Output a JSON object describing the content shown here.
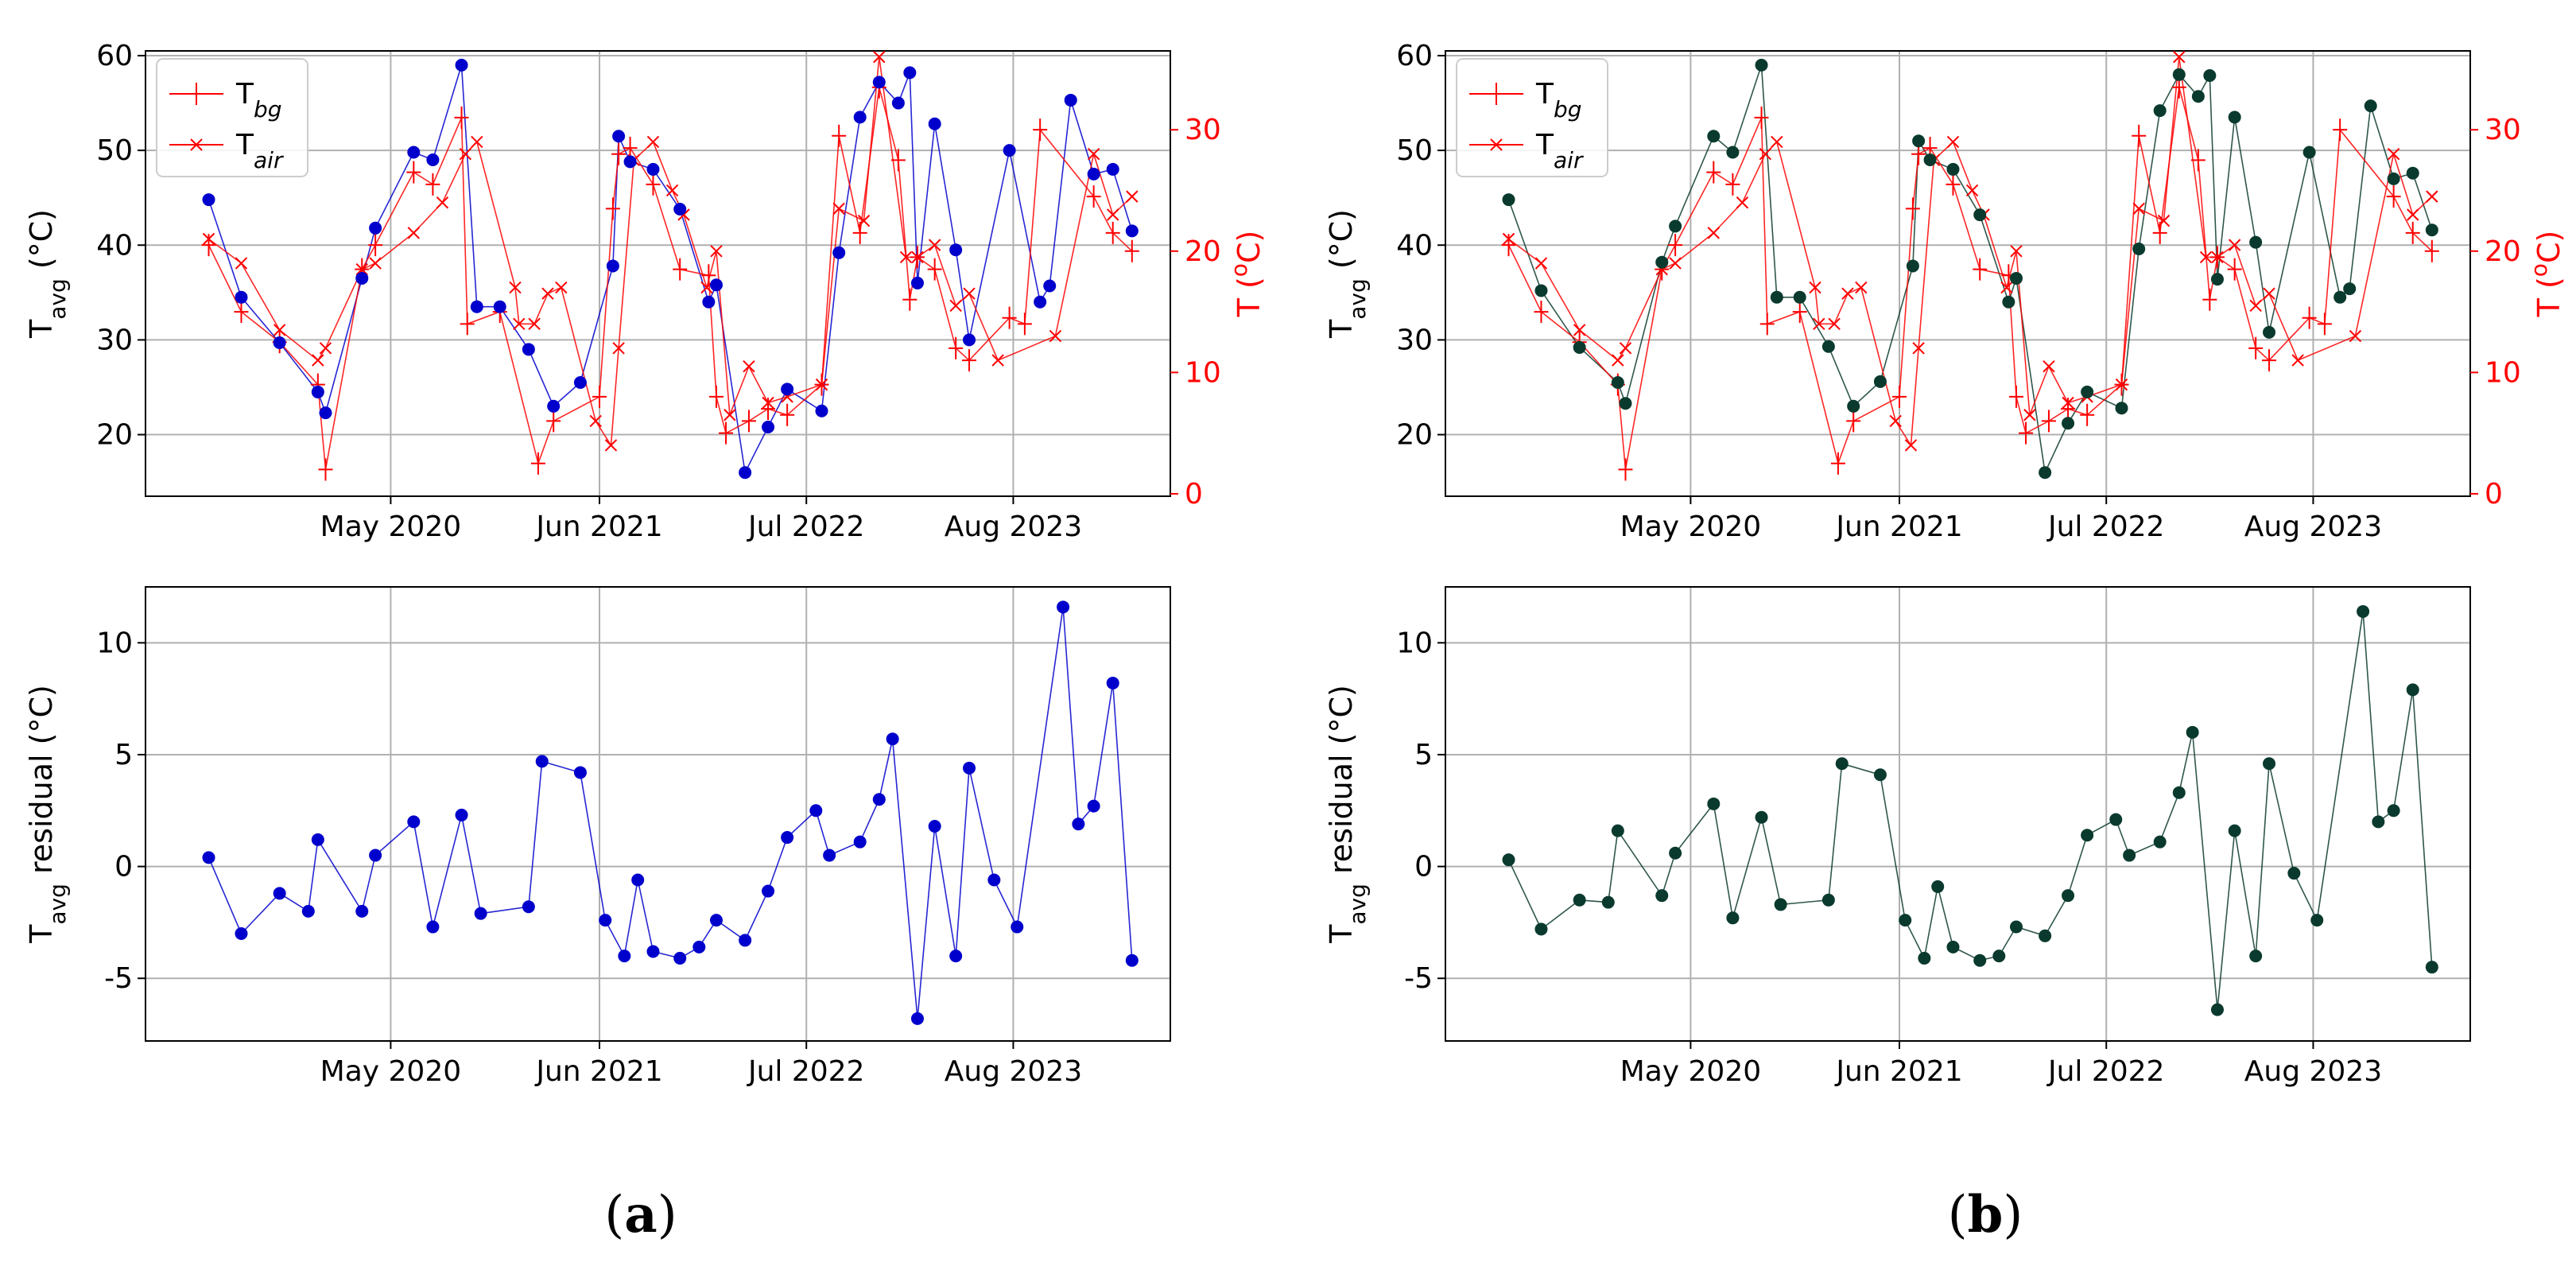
{
  "panels": [
    {
      "label_open": "(",
      "label_letter": "a",
      "label_close": ")",
      "top": {
        "type": "line",
        "ylabel_base": "T",
        "ylabel_sub": "avg",
        "ylabel_unit": " (°C)",
        "y2label_base": "T (",
        "y2label_sup": "o",
        "y2label_unit": "C)",
        "ylim": [
          13.5,
          60.5
        ],
        "y2lim": [
          -0.2,
          36.5
        ],
        "yticks": [
          20,
          30,
          40,
          50,
          60
        ],
        "y2ticks": [
          0,
          10,
          20,
          30
        ],
        "grid": true,
        "legend": "top-left",
        "series": [
          {
            "name_base": "T",
            "name_sub": "bg",
            "marker": "plus",
            "color": "#ff0000",
            "x": [
              2019.38,
              2019.55,
              2019.75,
              2019.95,
              2019.99,
              2020.18,
              2020.25,
              2020.45,
              2020.55,
              2020.7,
              2020.73,
              2020.9,
              2021.1,
              2021.18,
              2021.42,
              2021.49,
              2021.52,
              2021.58,
              2021.7,
              2021.84,
              2021.99,
              2022.03,
              2022.08,
              2022.2,
              2022.3,
              2022.4,
              2022.58,
              2022.67,
              2022.78,
              2022.88,
              2022.98,
              2023.04,
              2023.08,
              2023.17,
              2023.28,
              2023.35,
              2023.56,
              2023.64,
              2023.72,
              2024.0,
              2024.1,
              2024.2
            ],
            "y": [
              20.5,
              15.0,
              12.5,
              9.0,
              2.0,
              18.5,
              20.5,
              26.5,
              25.5,
              31.0,
              14.0,
              15.0,
              2.5,
              6.0,
              8.0,
              23.5,
              28.0,
              28.5,
              25.5,
              18.5,
              18.0,
              8.0,
              5.0,
              6.0,
              7.0,
              6.5,
              9.0,
              29.5,
              21.5,
              33.5,
              27.5,
              16.0,
              19.5,
              18.5,
              12.0,
              11.0,
              14.5,
              14.0,
              30.0,
              24.5,
              21.5,
              20.0
            ]
          },
          {
            "name_base": "T",
            "name_sub": "air",
            "marker": "x",
            "color": "#ff0000",
            "x": [
              2019.38,
              2019.55,
              2019.75,
              2019.95,
              2019.99,
              2020.18,
              2020.25,
              2020.45,
              2020.6,
              2020.72,
              2020.78,
              2020.98,
              2021.0,
              2021.08,
              2021.15,
              2021.22,
              2021.4,
              2021.48,
              2021.52,
              2021.6,
              2021.7,
              2021.8,
              2021.86,
              2021.98,
              2022.03,
              2022.1,
              2022.2,
              2022.3,
              2022.4,
              2022.58,
              2022.67,
              2022.8,
              2022.88,
              2023.02,
              2023.08,
              2023.17,
              2023.28,
              2023.35,
              2023.5,
              2023.8,
              2024.0,
              2024.1,
              2024.2
            ],
            "y": [
              21.0,
              19.0,
              13.5,
              11.0,
              12.0,
              18.5,
              19.0,
              21.5,
              24.0,
              28.0,
              29.0,
              17.0,
              14.0,
              14.0,
              16.5,
              17.0,
              6.0,
              4.0,
              12.0,
              27.5,
              29.0,
              25.0,
              23.0,
              17.0,
              20.0,
              6.5,
              10.5,
              7.5,
              8.0,
              9.0,
              23.5,
              22.5,
              36.0,
              19.5,
              19.5,
              20.5,
              15.5,
              16.5,
              11.0,
              13.0,
              28.0,
              23.0,
              24.5
            ]
          }
        ],
        "blue_series": {
          "name": "",
          "color": "#0000cc",
          "x": [
            2019.38,
            2019.55,
            2019.75,
            2019.95,
            2019.99,
            2020.18,
            2020.25,
            2020.45,
            2020.55,
            2020.7,
            2020.78,
            2020.9,
            2021.05,
            2021.18,
            2021.32,
            2021.49,
            2021.52,
            2021.58,
            2021.7,
            2021.84,
            2021.99,
            2022.03,
            2022.18,
            2022.3,
            2022.4,
            2022.58,
            2022.67,
            2022.78,
            2022.88,
            2022.98,
            2023.04,
            2023.08,
            2023.17,
            2023.28,
            2023.35,
            2023.56,
            2023.72,
            2023.77,
            2023.88,
            2024.0,
            2024.1,
            2024.2
          ],
          "y": [
            44.8,
            34.5,
            29.7,
            24.5,
            22.3,
            36.5,
            41.8,
            49.8,
            49.0,
            59.0,
            33.5,
            33.5,
            29.0,
            23.0,
            25.5,
            37.8,
            51.5,
            48.8,
            48.0,
            43.8,
            34.0,
            35.8,
            16.0,
            20.8,
            24.8,
            22.5,
            39.2,
            53.5,
            57.2,
            55.0,
            58.2,
            36.0,
            52.8,
            39.5,
            30.0,
            50.0,
            34.0,
            35.7,
            55.3,
            47.5,
            48.0,
            41.5
          ]
        }
      },
      "bottom": {
        "type": "line",
        "ylabel_base": "T",
        "ylabel_sub": "avg",
        "ylabel_unit": " residual (°C)",
        "ylim": [
          -7.8,
          12.5
        ],
        "yticks": [
          -5,
          0,
          5,
          10
        ],
        "grid": true,
        "series": [
          {
            "name": "",
            "color": "#0000cc",
            "x": [
              2019.38,
              2019.55,
              2019.75,
              2019.9,
              2019.95,
              2020.18,
              2020.25,
              2020.45,
              2020.55,
              2020.7,
              2020.8,
              2021.05,
              2021.12,
              2021.32,
              2021.45,
              2021.55,
              2021.62,
              2021.7,
              2021.84,
              2021.94,
              2022.03,
              2022.18,
              2022.3,
              2022.4,
              2022.55,
              2022.62,
              2022.78,
              2022.88,
              2022.95,
              2023.08,
              2023.17,
              2023.28,
              2023.35,
              2023.48,
              2023.6,
              2023.84,
              2023.92,
              2024.0,
              2024.1,
              2024.2
            ],
            "y": [
              0.4,
              -3.0,
              -1.2,
              -2.0,
              1.2,
              -2.0,
              0.5,
              2.0,
              -2.7,
              2.3,
              -2.1,
              -1.8,
              4.7,
              4.2,
              -2.4,
              -4.0,
              -0.6,
              -3.8,
              -4.1,
              -3.6,
              -2.4,
              -3.3,
              -1.1,
              1.3,
              2.5,
              0.5,
              1.1,
              3.0,
              5.7,
              -6.8,
              1.8,
              -4.0,
              4.4,
              -0.6,
              -2.7,
              11.6,
              1.9,
              2.7,
              8.2,
              -4.2
            ]
          }
        ]
      }
    },
    {
      "label_open": "(",
      "label_letter": "b",
      "label_close": ")",
      "top": {
        "type": "line",
        "ylabel_base": "T",
        "ylabel_sub": "avg",
        "ylabel_unit": " (°C)",
        "y2label_base": "T (",
        "y2label_sup": "o",
        "y2label_unit": "C)",
        "ylim": [
          13.5,
          60.5
        ],
        "y2lim": [
          -0.2,
          36.5
        ],
        "yticks": [
          20,
          30,
          40,
          50,
          60
        ],
        "y2ticks": [
          0,
          10,
          20,
          30
        ],
        "grid": true,
        "legend": "top-left",
        "series": [
          {
            "name_base": "T",
            "name_sub": "bg",
            "marker": "plus",
            "color": "#ff0000",
            "x": [
              2019.38,
              2019.55,
              2019.75,
              2019.95,
              2019.99,
              2020.18,
              2020.25,
              2020.45,
              2020.55,
              2020.7,
              2020.73,
              2020.9,
              2021.1,
              2021.18,
              2021.42,
              2021.49,
              2021.52,
              2021.58,
              2021.7,
              2021.84,
              2021.99,
              2022.03,
              2022.08,
              2022.2,
              2022.3,
              2022.4,
              2022.58,
              2022.67,
              2022.78,
              2022.88,
              2022.98,
              2023.04,
              2023.08,
              2023.17,
              2023.28,
              2023.35,
              2023.56,
              2023.64,
              2023.72,
              2024.0,
              2024.1,
              2024.2
            ],
            "y": [
              20.5,
              15.0,
              12.5,
              9.0,
              2.0,
              18.5,
              20.5,
              26.5,
              25.5,
              31.0,
              14.0,
              15.0,
              2.5,
              6.0,
              8.0,
              23.5,
              28.0,
              28.5,
              25.5,
              18.5,
              18.0,
              8.0,
              5.0,
              6.0,
              7.0,
              6.5,
              9.0,
              29.5,
              21.5,
              33.5,
              27.5,
              16.0,
              19.5,
              18.5,
              12.0,
              11.0,
              14.5,
              14.0,
              30.0,
              24.5,
              21.5,
              20.0
            ]
          },
          {
            "name_base": "T",
            "name_sub": "air",
            "marker": "x",
            "color": "#ff0000",
            "x": [
              2019.38,
              2019.55,
              2019.75,
              2019.95,
              2019.99,
              2020.18,
              2020.25,
              2020.45,
              2020.6,
              2020.72,
              2020.78,
              2020.98,
              2021.0,
              2021.08,
              2021.15,
              2021.22,
              2021.4,
              2021.48,
              2021.52,
              2021.6,
              2021.7,
              2021.8,
              2021.86,
              2021.98,
              2022.03,
              2022.1,
              2022.2,
              2022.3,
              2022.4,
              2022.58,
              2022.67,
              2022.8,
              2022.88,
              2023.02,
              2023.08,
              2023.17,
              2023.28,
              2023.35,
              2023.5,
              2023.8,
              2024.0,
              2024.1,
              2024.2
            ],
            "y": [
              21.0,
              19.0,
              13.5,
              11.0,
              12.0,
              18.5,
              19.0,
              21.5,
              24.0,
              28.0,
              29.0,
              17.0,
              14.0,
              14.0,
              16.5,
              17.0,
              6.0,
              4.0,
              12.0,
              27.5,
              29.0,
              25.0,
              23.0,
              17.0,
              20.0,
              6.5,
              10.5,
              7.5,
              8.0,
              9.0,
              23.5,
              22.5,
              36.0,
              19.5,
              19.5,
              20.5,
              15.5,
              16.5,
              11.0,
              13.0,
              28.0,
              23.0,
              24.5
            ]
          }
        ],
        "blue_series": {
          "name": "",
          "color": "#0a3a2e",
          "x": [
            2019.38,
            2019.55,
            2019.75,
            2019.95,
            2019.99,
            2020.18,
            2020.25,
            2020.45,
            2020.55,
            2020.7,
            2020.78,
            2020.9,
            2021.05,
            2021.18,
            2021.32,
            2021.49,
            2021.52,
            2021.58,
            2021.7,
            2021.84,
            2021.99,
            2022.03,
            2022.18,
            2022.3,
            2022.4,
            2022.58,
            2022.67,
            2022.78,
            2022.88,
            2022.98,
            2023.04,
            2023.08,
            2023.17,
            2023.28,
            2023.35,
            2023.56,
            2023.72,
            2023.77,
            2023.88,
            2024.0,
            2024.1,
            2024.2
          ],
          "y": [
            44.8,
            35.2,
            29.2,
            25.5,
            23.3,
            38.2,
            42.0,
            51.5,
            49.8,
            59.0,
            34.5,
            34.5,
            29.3,
            23.0,
            25.6,
            37.8,
            51.0,
            49.0,
            48.0,
            43.2,
            34.0,
            36.5,
            16.0,
            21.2,
            24.5,
            22.8,
            39.6,
            54.2,
            58.0,
            55.7,
            57.9,
            36.4,
            53.5,
            40.3,
            30.8,
            49.8,
            34.5,
            35.4,
            54.7,
            47.0,
            47.6,
            41.6
          ]
        }
      },
      "bottom": {
        "type": "line",
        "ylabel_base": "T",
        "ylabel_sub": "avg",
        "ylabel_unit": " residual (°C)",
        "ylim": [
          -7.8,
          12.5
        ],
        "yticks": [
          -5,
          0,
          5,
          10
        ],
        "grid": true,
        "series": [
          {
            "name": "",
            "color": "#0a3a2e",
            "x": [
              2019.38,
              2019.55,
              2019.75,
              2019.9,
              2019.95,
              2020.18,
              2020.25,
              2020.45,
              2020.55,
              2020.7,
              2020.8,
              2021.05,
              2021.12,
              2021.32,
              2021.45,
              2021.55,
              2021.62,
              2021.7,
              2021.84,
              2021.94,
              2022.03,
              2022.18,
              2022.3,
              2022.4,
              2022.55,
              2022.62,
              2022.78,
              2022.88,
              2022.95,
              2023.08,
              2023.17,
              2023.28,
              2023.35,
              2023.48,
              2023.6,
              2023.84,
              2023.92,
              2024.0,
              2024.1,
              2024.2
            ],
            "y": [
              0.3,
              -2.8,
              -1.5,
              -1.6,
              1.6,
              -1.3,
              0.6,
              2.8,
              -2.3,
              2.2,
              -1.7,
              -1.5,
              4.6,
              4.1,
              -2.4,
              -4.1,
              -0.9,
              -3.6,
              -4.2,
              -4.0,
              -2.7,
              -3.1,
              -1.3,
              1.4,
              2.1,
              0.5,
              1.1,
              3.3,
              6.0,
              -6.4,
              1.6,
              -4.0,
              4.6,
              -0.3,
              -2.4,
              11.4,
              2.0,
              2.5,
              7.9,
              -4.5
            ]
          }
        ]
      }
    }
  ],
  "x_axis": {
    "ticks": [
      2020.33,
      2021.42,
      2022.5,
      2023.58
    ],
    "tick_labels": [
      "May 2020",
      "Jun 2021",
      "Jul 2022",
      "Aug 2023"
    ],
    "xlim": [
      2019.05,
      2024.4
    ]
  },
  "colors": {
    "grid": "#b0b0b0",
    "axis": "#000000",
    "red": "#ff0000"
  }
}
